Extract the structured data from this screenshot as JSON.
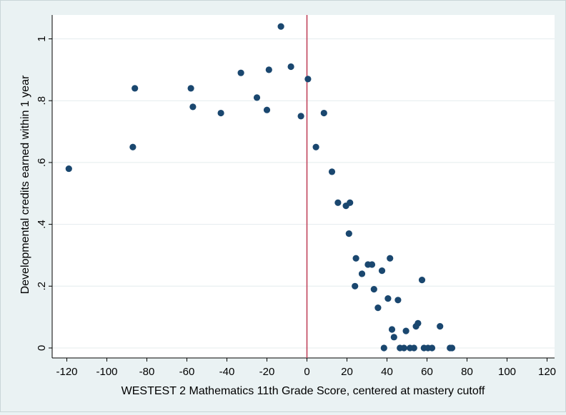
{
  "chart_data": {
    "type": "scatter",
    "xlabel": "WESTEST 2 Mathematics 11th Grade Score, centered at mastery cutoff",
    "ylabel": "Developmental credits earned within 1 year",
    "xlim": [
      -120,
      120
    ],
    "ylim": [
      0,
      1
    ],
    "x_ticks": [
      -120,
      -100,
      -80,
      -60,
      -40,
      -20,
      0,
      20,
      40,
      60,
      80,
      100,
      120
    ],
    "y_ticks": [
      0,
      0.2,
      0.4,
      0.6,
      0.8,
      1
    ],
    "y_tick_labels": [
      "0",
      ".2",
      ".4",
      ".6",
      ".8",
      "1"
    ],
    "grid": "horizontal",
    "cutoff_line": {
      "x": 0,
      "color": "#c0435a"
    },
    "point_color": "#1a476f",
    "points": [
      {
        "x": -119,
        "y": 0.58
      },
      {
        "x": -87,
        "y": 0.65
      },
      {
        "x": -86,
        "y": 0.84
      },
      {
        "x": -58,
        "y": 0.84
      },
      {
        "x": -57,
        "y": 0.78
      },
      {
        "x": -43,
        "y": 0.76
      },
      {
        "x": -33,
        "y": 0.89
      },
      {
        "x": -25,
        "y": 0.81
      },
      {
        "x": -20,
        "y": 0.77
      },
      {
        "x": -19,
        "y": 0.9
      },
      {
        "x": -13,
        "y": 1.04
      },
      {
        "x": -8,
        "y": 0.91
      },
      {
        "x": -3,
        "y": 0.75
      },
      {
        "x": 0.5,
        "y": 0.87
      },
      {
        "x": 4.5,
        "y": 0.65
      },
      {
        "x": 8.5,
        "y": 0.76
      },
      {
        "x": 12.5,
        "y": 0.57
      },
      {
        "x": 15.5,
        "y": 0.47
      },
      {
        "x": 19.5,
        "y": 0.46
      },
      {
        "x": 21.5,
        "y": 0.47
      },
      {
        "x": 21,
        "y": 0.37
      },
      {
        "x": 24.5,
        "y": 0.29
      },
      {
        "x": 24,
        "y": 0.2
      },
      {
        "x": 27.5,
        "y": 0.24
      },
      {
        "x": 30.5,
        "y": 0.27
      },
      {
        "x": 32.5,
        "y": 0.27
      },
      {
        "x": 33.5,
        "y": 0.19
      },
      {
        "x": 35.5,
        "y": 0.13
      },
      {
        "x": 37.5,
        "y": 0.25
      },
      {
        "x": 38.5,
        "y": 0.0
      },
      {
        "x": 40.5,
        "y": 0.16
      },
      {
        "x": 41.5,
        "y": 0.29
      },
      {
        "x": 42.5,
        "y": 0.06
      },
      {
        "x": 43.5,
        "y": 0.035
      },
      {
        "x": 45.5,
        "y": 0.155
      },
      {
        "x": 46.5,
        "y": 0.0
      },
      {
        "x": 48.5,
        "y": 0.0
      },
      {
        "x": 49.5,
        "y": 0.055
      },
      {
        "x": 51.5,
        "y": 0.0
      },
      {
        "x": 53.5,
        "y": 0.0
      },
      {
        "x": 54.5,
        "y": 0.07
      },
      {
        "x": 55.5,
        "y": 0.08
      },
      {
        "x": 57.5,
        "y": 0.22
      },
      {
        "x": 58.5,
        "y": 0.0
      },
      {
        "x": 60.5,
        "y": 0.0
      },
      {
        "x": 62.5,
        "y": 0.0
      },
      {
        "x": 66.5,
        "y": 0.07
      },
      {
        "x": 71.5,
        "y": 0.0
      },
      {
        "x": 72.5,
        "y": 0.0
      }
    ]
  }
}
